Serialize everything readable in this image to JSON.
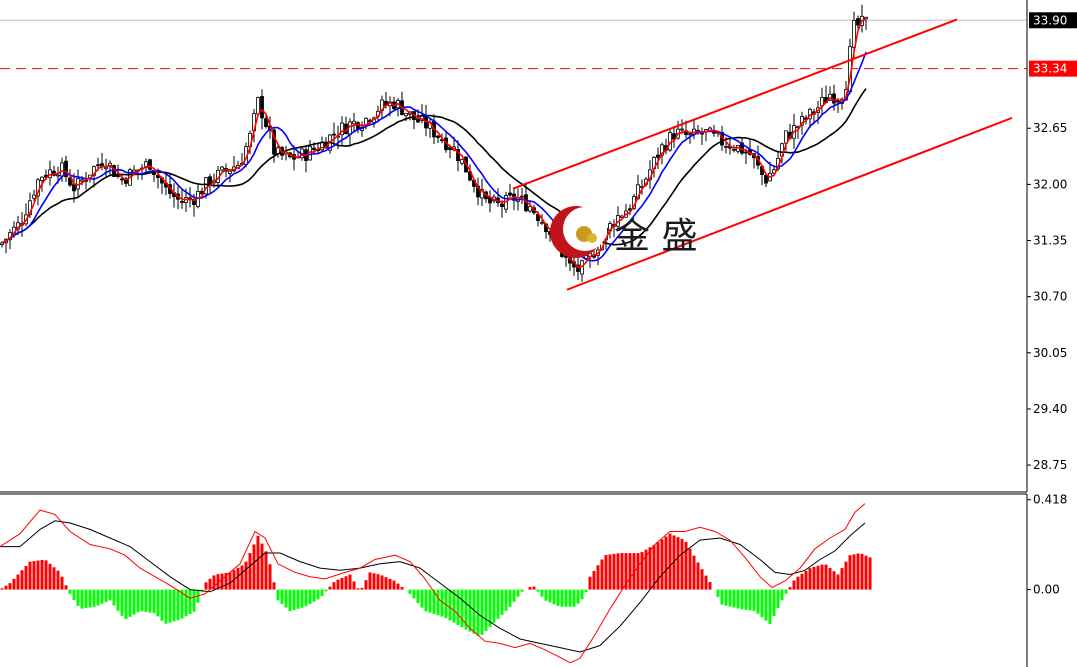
{
  "chart_data": [
    {
      "type": "candlestick",
      "y_ticks": [
        "28.75",
        "29.40",
        "30.05",
        "30.70",
        "31.35",
        "32.00",
        "32.65"
      ],
      "ylim": [
        28.45,
        34.1
      ],
      "price_tags": [
        {
          "label": "33.90",
          "value": 33.9,
          "color": "#000000"
        },
        {
          "label": "33.34",
          "value": 33.34,
          "color": "#ff0000"
        }
      ],
      "ma_colors": {
        "fast": "#ff0000",
        "mid": "#0000ff",
        "slow": "#000000"
      },
      "channel_color": "#ff0000",
      "channel_lines": [
        {
          "x": [
            513,
            957
          ],
          "y": [
            31.95,
            33.91
          ]
        },
        {
          "x": [
            567,
            1012
          ],
          "y": [
            30.78,
            32.77
          ]
        }
      ],
      "key_closes": [
        {
          "x": 0,
          "close": 31.3
        },
        {
          "x": 20,
          "close": 31.55
        },
        {
          "x": 40,
          "close": 32.1
        },
        {
          "x": 60,
          "close": 32.2
        },
        {
          "x": 75,
          "close": 31.95
        },
        {
          "x": 90,
          "close": 32.15
        },
        {
          "x": 105,
          "close": 32.3
        },
        {
          "x": 120,
          "close": 32.05
        },
        {
          "x": 135,
          "close": 32.15
        },
        {
          "x": 150,
          "close": 32.25
        },
        {
          "x": 165,
          "close": 31.95
        },
        {
          "x": 180,
          "close": 31.8
        },
        {
          "x": 195,
          "close": 31.85
        },
        {
          "x": 210,
          "close": 32.05
        },
        {
          "x": 225,
          "close": 32.15
        },
        {
          "x": 240,
          "close": 32.25
        },
        {
          "x": 250,
          "close": 32.55
        },
        {
          "x": 258,
          "close": 32.95
        },
        {
          "x": 265,
          "close": 32.75
        },
        {
          "x": 275,
          "close": 32.35
        },
        {
          "x": 290,
          "close": 32.3
        },
        {
          "x": 305,
          "close": 32.35
        },
        {
          "x": 320,
          "close": 32.45
        },
        {
          "x": 335,
          "close": 32.6
        },
        {
          "x": 350,
          "close": 32.7
        },
        {
          "x": 365,
          "close": 32.75
        },
        {
          "x": 380,
          "close": 32.9
        },
        {
          "x": 395,
          "close": 32.95
        },
        {
          "x": 405,
          "close": 32.85
        },
        {
          "x": 415,
          "close": 32.75
        },
        {
          "x": 425,
          "close": 32.7
        },
        {
          "x": 440,
          "close": 32.55
        },
        {
          "x": 455,
          "close": 32.4
        },
        {
          "x": 470,
          "close": 32.1
        },
        {
          "x": 485,
          "close": 31.8
        },
        {
          "x": 500,
          "close": 31.75
        },
        {
          "x": 515,
          "close": 31.85
        },
        {
          "x": 530,
          "close": 31.75
        },
        {
          "x": 545,
          "close": 31.55
        },
        {
          "x": 560,
          "close": 31.25
        },
        {
          "x": 570,
          "close": 31.05
        },
        {
          "x": 580,
          "close": 31.0
        },
        {
          "x": 590,
          "close": 31.15
        },
        {
          "x": 600,
          "close": 31.35
        },
        {
          "x": 615,
          "close": 31.6
        },
        {
          "x": 630,
          "close": 31.75
        },
        {
          "x": 645,
          "close": 32.05
        },
        {
          "x": 660,
          "close": 32.4
        },
        {
          "x": 675,
          "close": 32.6
        },
        {
          "x": 690,
          "close": 32.55
        },
        {
          "x": 705,
          "close": 32.6
        },
        {
          "x": 720,
          "close": 32.5
        },
        {
          "x": 735,
          "close": 32.45
        },
        {
          "x": 750,
          "close": 32.35
        },
        {
          "x": 765,
          "close": 32.05
        },
        {
          "x": 775,
          "close": 32.2
        },
        {
          "x": 785,
          "close": 32.55
        },
        {
          "x": 800,
          "close": 32.7
        },
        {
          "x": 815,
          "close": 32.85
        },
        {
          "x": 830,
          "close": 33.05
        },
        {
          "x": 840,
          "close": 33.0
        },
        {
          "x": 848,
          "close": 33.25
        },
        {
          "x": 852,
          "close": 33.8
        },
        {
          "x": 860,
          "close": 33.85
        },
        {
          "x": 868,
          "close": 33.88
        }
      ]
    },
    {
      "type": "bar",
      "y_ticks": [
        "0.418",
        "0.00"
      ],
      "ylim": [
        -0.36,
        0.44
      ],
      "colors": {
        "positive": "#ff0000",
        "negative": "#00ff00",
        "signal_fast": "#ff0000",
        "signal_slow": "#000000"
      },
      "histogram": [
        {
          "x": 0,
          "value": 0.0
        },
        {
          "x": 10,
          "value": 0.03
        },
        {
          "x": 20,
          "value": 0.08
        },
        {
          "x": 30,
          "value": 0.13
        },
        {
          "x": 45,
          "value": 0.14
        },
        {
          "x": 60,
          "value": 0.08
        },
        {
          "x": 70,
          "value": -0.02
        },
        {
          "x": 80,
          "value": -0.09
        },
        {
          "x": 95,
          "value": -0.08
        },
        {
          "x": 110,
          "value": -0.05
        },
        {
          "x": 125,
          "value": -0.14
        },
        {
          "x": 140,
          "value": -0.1
        },
        {
          "x": 155,
          "value": -0.11
        },
        {
          "x": 165,
          "value": -0.16
        },
        {
          "x": 180,
          "value": -0.14
        },
        {
          "x": 195,
          "value": -0.1
        },
        {
          "x": 205,
          "value": 0.03
        },
        {
          "x": 215,
          "value": 0.07
        },
        {
          "x": 230,
          "value": 0.08
        },
        {
          "x": 245,
          "value": 0.12
        },
        {
          "x": 258,
          "value": 0.25
        },
        {
          "x": 268,
          "value": 0.16
        },
        {
          "x": 278,
          "value": -0.05
        },
        {
          "x": 290,
          "value": -0.1
        },
        {
          "x": 305,
          "value": -0.08
        },
        {
          "x": 320,
          "value": -0.04
        },
        {
          "x": 335,
          "value": 0.04
        },
        {
          "x": 350,
          "value": 0.07
        },
        {
          "x": 360,
          "value": -0.01
        },
        {
          "x": 370,
          "value": 0.08
        },
        {
          "x": 380,
          "value": 0.07
        },
        {
          "x": 395,
          "value": 0.04
        },
        {
          "x": 410,
          "value": -0.02
        },
        {
          "x": 425,
          "value": -0.1
        },
        {
          "x": 445,
          "value": -0.13
        },
        {
          "x": 460,
          "value": -0.17
        },
        {
          "x": 480,
          "value": -0.22
        },
        {
          "x": 495,
          "value": -0.15
        },
        {
          "x": 510,
          "value": -0.08
        },
        {
          "x": 522,
          "value": -0.01
        },
        {
          "x": 533,
          "value": 0.02
        },
        {
          "x": 545,
          "value": -0.05
        },
        {
          "x": 560,
          "value": -0.08
        },
        {
          "x": 575,
          "value": -0.08
        },
        {
          "x": 585,
          "value": -0.03
        },
        {
          "x": 590,
          "value": 0.06
        },
        {
          "x": 605,
          "value": 0.16
        },
        {
          "x": 620,
          "value": 0.17
        },
        {
          "x": 640,
          "value": 0.17
        },
        {
          "x": 655,
          "value": 0.21
        },
        {
          "x": 670,
          "value": 0.26
        },
        {
          "x": 685,
          "value": 0.23
        },
        {
          "x": 700,
          "value": 0.11
        },
        {
          "x": 712,
          "value": 0.02
        },
        {
          "x": 722,
          "value": -0.07
        },
        {
          "x": 740,
          "value": -0.09
        },
        {
          "x": 755,
          "value": -0.1
        },
        {
          "x": 770,
          "value": -0.16
        },
        {
          "x": 782,
          "value": -0.05
        },
        {
          "x": 795,
          "value": 0.05
        },
        {
          "x": 810,
          "value": 0.1
        },
        {
          "x": 825,
          "value": 0.12
        },
        {
          "x": 838,
          "value": 0.07
        },
        {
          "x": 850,
          "value": 0.16
        },
        {
          "x": 860,
          "value": 0.17
        },
        {
          "x": 870,
          "value": 0.15
        }
      ],
      "signal_fast": [
        {
          "x": 0,
          "value": 0.2
        },
        {
          "x": 20,
          "value": 0.26
        },
        {
          "x": 40,
          "value": 0.37
        },
        {
          "x": 55,
          "value": 0.35
        },
        {
          "x": 70,
          "value": 0.27
        },
        {
          "x": 90,
          "value": 0.21
        },
        {
          "x": 110,
          "value": 0.19
        },
        {
          "x": 125,
          "value": 0.16
        },
        {
          "x": 140,
          "value": 0.1
        },
        {
          "x": 155,
          "value": 0.06
        },
        {
          "x": 170,
          "value": 0.02
        },
        {
          "x": 190,
          "value": -0.04
        },
        {
          "x": 205,
          "value": -0.02
        },
        {
          "x": 220,
          "value": 0.04
        },
        {
          "x": 240,
          "value": 0.12
        },
        {
          "x": 255,
          "value": 0.27
        },
        {
          "x": 265,
          "value": 0.24
        },
        {
          "x": 278,
          "value": 0.12
        },
        {
          "x": 295,
          "value": 0.08
        },
        {
          "x": 310,
          "value": 0.06
        },
        {
          "x": 325,
          "value": 0.05
        },
        {
          "x": 345,
          "value": 0.08
        },
        {
          "x": 360,
          "value": 0.1
        },
        {
          "x": 375,
          "value": 0.14
        },
        {
          "x": 395,
          "value": 0.16
        },
        {
          "x": 410,
          "value": 0.13
        },
        {
          "x": 425,
          "value": 0.05
        },
        {
          "x": 440,
          "value": -0.05
        },
        {
          "x": 455,
          "value": -0.1
        },
        {
          "x": 470,
          "value": -0.18
        },
        {
          "x": 485,
          "value": -0.24
        },
        {
          "x": 500,
          "value": -0.25
        },
        {
          "x": 515,
          "value": -0.27
        },
        {
          "x": 530,
          "value": -0.25
        },
        {
          "x": 545,
          "value": -0.28
        },
        {
          "x": 558,
          "value": -0.31
        },
        {
          "x": 570,
          "value": -0.34
        },
        {
          "x": 580,
          "value": -0.32
        },
        {
          "x": 595,
          "value": -0.21
        },
        {
          "x": 610,
          "value": -0.09
        },
        {
          "x": 625,
          "value": 0.02
        },
        {
          "x": 640,
          "value": 0.12
        },
        {
          "x": 655,
          "value": 0.21
        },
        {
          "x": 670,
          "value": 0.27
        },
        {
          "x": 685,
          "value": 0.27
        },
        {
          "x": 700,
          "value": 0.29
        },
        {
          "x": 715,
          "value": 0.27
        },
        {
          "x": 730,
          "value": 0.23
        },
        {
          "x": 745,
          "value": 0.15
        },
        {
          "x": 760,
          "value": 0.06
        },
        {
          "x": 772,
          "value": 0.01
        },
        {
          "x": 785,
          "value": 0.04
        },
        {
          "x": 800,
          "value": 0.1
        },
        {
          "x": 815,
          "value": 0.19
        },
        {
          "x": 830,
          "value": 0.24
        },
        {
          "x": 845,
          "value": 0.28
        },
        {
          "x": 855,
          "value": 0.36
        },
        {
          "x": 865,
          "value": 0.4
        }
      ],
      "signal_slow": [
        {
          "x": 0,
          "value": 0.2
        },
        {
          "x": 20,
          "value": 0.2
        },
        {
          "x": 40,
          "value": 0.28
        },
        {
          "x": 55,
          "value": 0.32
        },
        {
          "x": 70,
          "value": 0.31
        },
        {
          "x": 90,
          "value": 0.28
        },
        {
          "x": 110,
          "value": 0.24
        },
        {
          "x": 130,
          "value": 0.2
        },
        {
          "x": 150,
          "value": 0.13
        },
        {
          "x": 170,
          "value": 0.06
        },
        {
          "x": 190,
          "value": 0.0
        },
        {
          "x": 210,
          "value": -0.01
        },
        {
          "x": 230,
          "value": 0.03
        },
        {
          "x": 250,
          "value": 0.11
        },
        {
          "x": 265,
          "value": 0.17
        },
        {
          "x": 280,
          "value": 0.17
        },
        {
          "x": 300,
          "value": 0.13
        },
        {
          "x": 320,
          "value": 0.1
        },
        {
          "x": 340,
          "value": 0.09
        },
        {
          "x": 360,
          "value": 0.1
        },
        {
          "x": 380,
          "value": 0.12
        },
        {
          "x": 400,
          "value": 0.13
        },
        {
          "x": 420,
          "value": 0.1
        },
        {
          "x": 440,
          "value": 0.03
        },
        {
          "x": 460,
          "value": -0.04
        },
        {
          "x": 480,
          "value": -0.12
        },
        {
          "x": 500,
          "value": -0.18
        },
        {
          "x": 520,
          "value": -0.23
        },
        {
          "x": 540,
          "value": -0.25
        },
        {
          "x": 560,
          "value": -0.27
        },
        {
          "x": 580,
          "value": -0.29
        },
        {
          "x": 600,
          "value": -0.26
        },
        {
          "x": 620,
          "value": -0.17
        },
        {
          "x": 640,
          "value": -0.06
        },
        {
          "x": 660,
          "value": 0.06
        },
        {
          "x": 680,
          "value": 0.16
        },
        {
          "x": 700,
          "value": 0.23
        },
        {
          "x": 720,
          "value": 0.24
        },
        {
          "x": 740,
          "value": 0.21
        },
        {
          "x": 760,
          "value": 0.14
        },
        {
          "x": 775,
          "value": 0.08
        },
        {
          "x": 790,
          "value": 0.07
        },
        {
          "x": 805,
          "value": 0.09
        },
        {
          "x": 820,
          "value": 0.14
        },
        {
          "x": 835,
          "value": 0.18
        },
        {
          "x": 850,
          "value": 0.25
        },
        {
          "x": 865,
          "value": 0.31
        }
      ]
    }
  ],
  "watermark": {
    "text": "金 盛",
    "logo_icon": "crescent-moon-logo"
  }
}
